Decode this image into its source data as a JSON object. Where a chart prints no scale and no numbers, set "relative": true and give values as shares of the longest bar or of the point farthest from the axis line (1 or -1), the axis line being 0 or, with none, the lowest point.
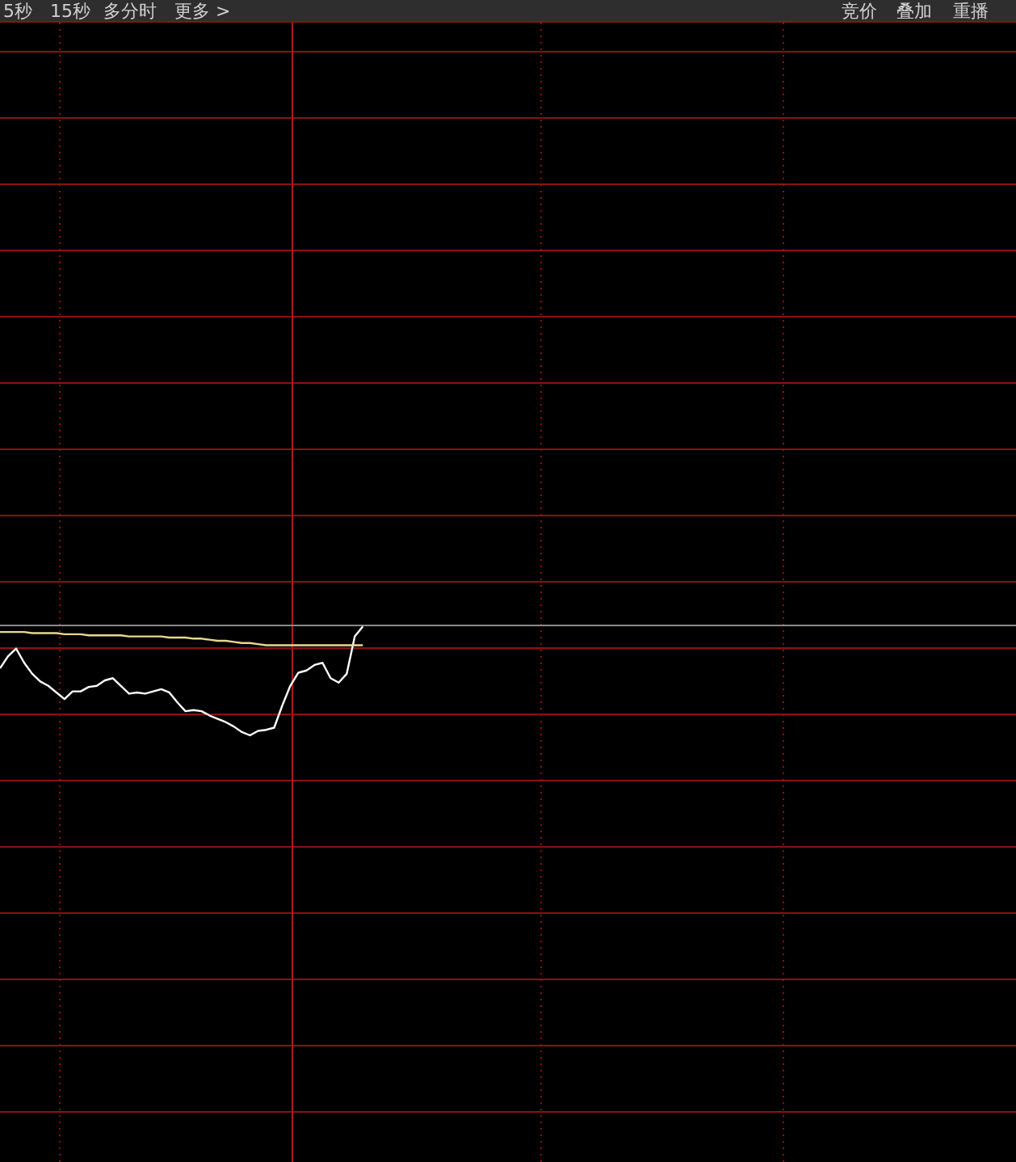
{
  "chart_data": {
    "type": "line",
    "relative": true,
    "annotations": [
      "5秒",
      "15秒",
      "多分时",
      "更多 >",
      "竞价",
      "叠加",
      "重播"
    ],
    "grid": true,
    "ref_lines": [
      {
        "axis": "y",
        "value": -0.21,
        "color": "#8c1212"
      },
      {
        "axis": "y",
        "value": -0.81,
        "color": "#8c1212"
      }
    ],
    "categories": [
      null,
      null,
      null,
      null,
      null,
      null,
      null,
      null,
      null,
      null,
      null,
      null,
      null,
      null,
      null,
      null,
      null,
      null,
      null,
      null,
      null,
      null,
      null,
      null,
      null,
      null,
      null,
      null,
      null,
      null,
      null,
      null,
      null,
      null,
      null,
      null,
      null,
      null,
      null,
      null,
      null,
      null,
      null,
      null,
      null,
      null,
      null,
      null,
      null,
      null,
      null,
      null,
      null,
      null,
      null,
      null,
      null,
      null,
      null,
      null,
      null,
      null,
      null,
      null,
      null,
      null,
      null,
      null,
      null,
      null,
      null,
      null,
      null,
      null,
      null,
      null,
      null,
      null,
      null,
      null,
      null,
      null,
      null,
      null,
      null,
      null,
      null,
      null,
      null,
      null,
      null,
      null,
      null,
      null,
      null,
      null,
      null,
      null,
      null,
      null,
      null,
      null,
      null,
      null,
      null,
      null,
      null,
      null,
      null,
      null,
      null,
      null,
      null,
      null,
      null,
      null,
      null,
      null,
      null,
      null,
      null,
      null,
      null,
      null,
      null,
      null
    ],
    "series": [
      {
        "color": "#ffffff",
        "values": [
          -0.39,
          -0.28,
          -0.21,
          -0.34,
          -0.44,
          -0.51,
          -0.55,
          -0.61,
          -0.67,
          -0.6,
          -0.6,
          -0.56,
          -0.55,
          -0.5,
          -0.48,
          -0.55,
          -0.62,
          -0.61,
          -0.62,
          -0.6,
          -0.58,
          -0.61,
          -0.7,
          -0.78,
          -0.77,
          -0.78,
          -0.82,
          -0.85,
          -0.88,
          -0.92,
          -0.97,
          -1,
          -0.96,
          -0.95,
          -0.93,
          -0.73,
          -0.55,
          -0.43,
          -0.41,
          -0.36,
          -0.34,
          -0.48,
          -0.52,
          -0.44,
          -0.1,
          -0.01,
          null,
          null,
          null,
          null,
          null,
          null,
          null,
          null,
          null,
          null,
          null,
          null,
          null,
          null,
          null,
          null,
          null,
          null,
          null,
          null,
          null,
          null,
          null,
          null,
          null,
          null,
          null,
          null,
          null,
          null,
          null,
          null,
          null,
          null,
          null,
          null,
          null,
          null,
          null,
          null,
          null,
          null,
          null,
          null,
          null,
          null,
          null,
          null,
          null,
          null,
          null,
          null,
          null,
          null,
          null,
          null,
          null,
          null,
          null,
          null,
          null,
          null,
          null,
          null,
          null,
          null,
          null,
          null,
          null,
          null,
          null,
          null,
          null,
          null,
          null,
          null,
          null,
          null,
          null,
          null
        ]
      },
      {
        "color": "#e8d890",
        "values": [
          -0.06,
          -0.06,
          -0.06,
          -0.06,
          -0.07,
          -0.07,
          -0.07,
          -0.07,
          -0.08,
          -0.08,
          -0.08,
          -0.09,
          -0.09,
          -0.09,
          -0.09,
          -0.09,
          -0.1,
          -0.1,
          -0.1,
          -0.1,
          -0.1,
          -0.11,
          -0.11,
          -0.11,
          -0.12,
          -0.12,
          -0.13,
          -0.14,
          -0.14,
          -0.15,
          -0.16,
          -0.16,
          -0.17,
          -0.18,
          -0.18,
          -0.18,
          -0.18,
          -0.18,
          -0.18,
          -0.18,
          -0.18,
          -0.18,
          -0.18,
          -0.18,
          -0.18,
          -0.18,
          null,
          null,
          null,
          null,
          null,
          null,
          null,
          null,
          null,
          null,
          null,
          null,
          null,
          null,
          null,
          null,
          null,
          null,
          null,
          null,
          null,
          null,
          null,
          null,
          null,
          null,
          null,
          null,
          null,
          null,
          null,
          null,
          null,
          null,
          null,
          null,
          null,
          null,
          null,
          null,
          null,
          null,
          null,
          null,
          null,
          null,
          null,
          null,
          null,
          null,
          null,
          null,
          null,
          null,
          null,
          null,
          null,
          null,
          null,
          null,
          null,
          null,
          null,
          null,
          null,
          null,
          null,
          null,
          null,
          null,
          null,
          null,
          null,
          null,
          null,
          null,
          null,
          null,
          null,
          null
        ]
      }
    ]
  }
}
